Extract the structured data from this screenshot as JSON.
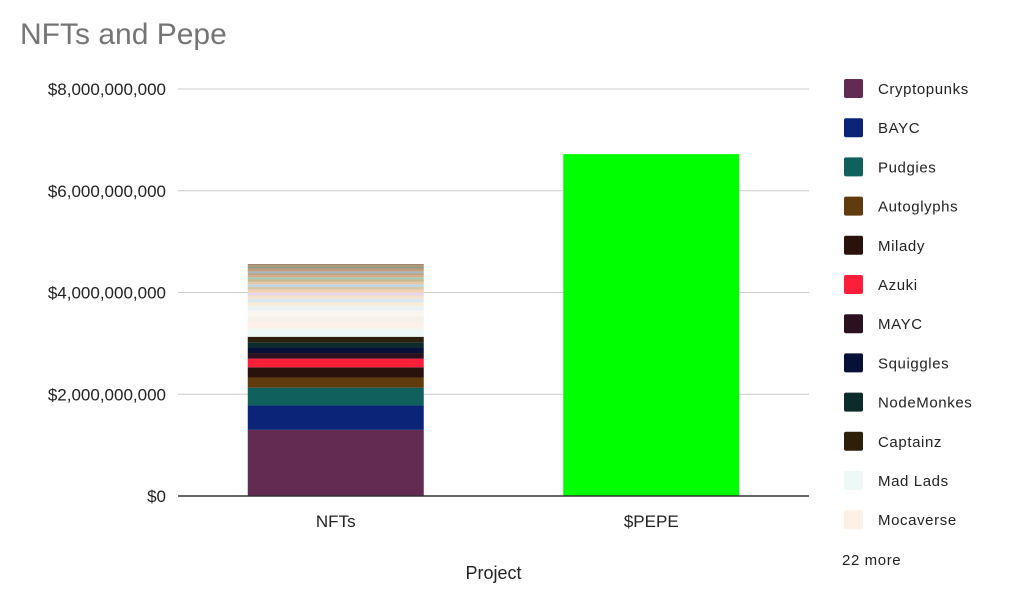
{
  "chart_data": {
    "type": "bar",
    "stacked": true,
    "title": "NFTs and Pepe",
    "xlabel": "Project",
    "ylabel": "",
    "categories": [
      "NFTs",
      "$PEPE"
    ],
    "ylim": [
      0,
      8000000000
    ],
    "yticks": [
      0,
      2000000000,
      4000000000,
      6000000000,
      8000000000
    ],
    "ytick_labels": [
      "$0",
      "$2,000,000,000",
      "$4,000,000,000",
      "$6,000,000,000",
      "$8,000,000,000"
    ],
    "grid": true,
    "legend_position": "right",
    "legend_more": "22 more",
    "series": [
      {
        "name": "Cryptopunks",
        "color": "#632a52",
        "values": [
          1300000000,
          0
        ]
      },
      {
        "name": "BAYC",
        "color": "#0b2478",
        "values": [
          480000000,
          0
        ]
      },
      {
        "name": "Pudgies",
        "color": "#10605e",
        "values": [
          350000000,
          0
        ]
      },
      {
        "name": "Autoglyphs",
        "color": "#5f3b0e",
        "values": [
          200000000,
          0
        ]
      },
      {
        "name": "Milady",
        "color": "#2a120c",
        "values": [
          200000000,
          0
        ]
      },
      {
        "name": "Azuki",
        "color": "#ff1f3a",
        "values": [
          170000000,
          0
        ]
      },
      {
        "name": "MAYC",
        "color": "#2b1120",
        "values": [
          110000000,
          0
        ]
      },
      {
        "name": "Squiggles",
        "color": "#071036",
        "values": [
          110000000,
          0
        ]
      },
      {
        "name": "NodeMonkes",
        "color": "#0c2b2a",
        "values": [
          100000000,
          0
        ]
      },
      {
        "name": "Captainz",
        "color": "#2e1f0a",
        "values": [
          110000000,
          0
        ]
      },
      {
        "name": "Mad Lads",
        "color": "#eef8f7",
        "values": [
          160000000,
          0
        ]
      },
      {
        "name": "Mocaverse",
        "color": "#fdf0e6",
        "values": [
          120000000,
          0
        ]
      },
      {
        "color": "#f5f0e8",
        "values": [
          120000000,
          0
        ]
      },
      {
        "color": "#fbf7f0",
        "values": [
          110000000,
          0
        ]
      },
      {
        "color": "#eaf2f8",
        "values": [
          90000000,
          0
        ]
      },
      {
        "color": "#f7ecd8",
        "values": [
          80000000,
          0
        ]
      },
      {
        "color": "#dbe8f4",
        "values": [
          70000000,
          0
        ]
      },
      {
        "color": "#f6e2c9",
        "values": [
          60000000,
          0
        ]
      },
      {
        "color": "#e8d6e8",
        "values": [
          60000000,
          0
        ]
      },
      {
        "color": "#f3d3b5",
        "values": [
          55000000,
          0
        ]
      },
      {
        "color": "#d8c8a8",
        "values": [
          55000000,
          0
        ]
      },
      {
        "color": "#b9d7ea",
        "values": [
          50000000,
          0
        ]
      },
      {
        "color": "#e9c7a3",
        "values": [
          50000000,
          0
        ]
      },
      {
        "color": "#c7b88e",
        "values": [
          45000000,
          0
        ]
      },
      {
        "color": "#a9c8b0",
        "values": [
          45000000,
          0
        ]
      },
      {
        "color": "#d8a88a",
        "values": [
          40000000,
          0
        ]
      },
      {
        "color": "#b8a27a",
        "values": [
          40000000,
          0
        ]
      },
      {
        "color": "#9fb7c9",
        "values": [
          35000000,
          0
        ]
      },
      {
        "color": "#c99a7a",
        "values": [
          35000000,
          0
        ]
      },
      {
        "color": "#a89070",
        "values": [
          30000000,
          0
        ]
      },
      {
        "color": "#8f9f88",
        "values": [
          30000000,
          0
        ]
      },
      {
        "color": "#b58a6a",
        "values": [
          25000000,
          0
        ]
      },
      {
        "color": "#9a8a6a",
        "values": [
          25000000,
          0
        ]
      },
      {
        "name": "$PEPE",
        "color": "#00ff00",
        "values": [
          0,
          6720000000
        ]
      }
    ]
  }
}
